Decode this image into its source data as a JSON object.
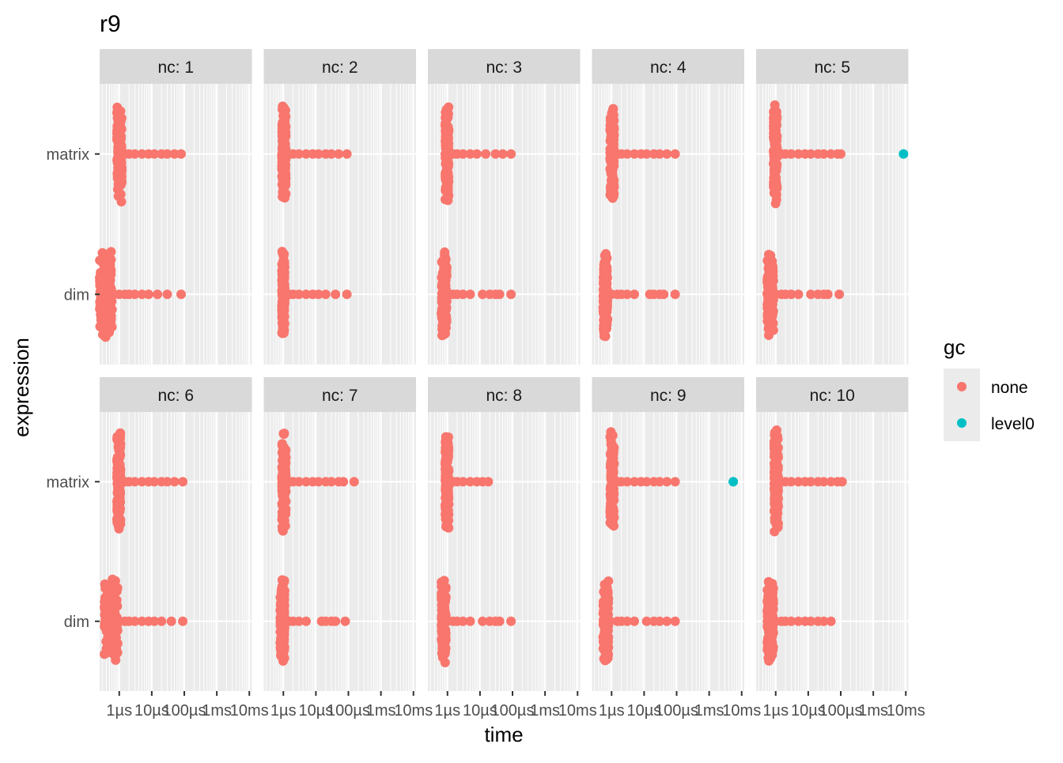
{
  "chart_data": {
    "type": "scatter",
    "title": "r9",
    "xlabel": "time",
    "ylabel": "expression",
    "x_scale": "log10",
    "x_ticks": [
      "1µs",
      "10µs",
      "100µs",
      "1ms",
      "10ms"
    ],
    "x_tick_values_seconds": [
      1e-06,
      1e-05,
      0.0001,
      0.001,
      0.01
    ],
    "y_categories": [
      "matrix",
      "dim"
    ],
    "legend": {
      "title": "gc",
      "position": "right",
      "entries": [
        {
          "label": "none",
          "color": "#F8766D"
        },
        {
          "label": "level0",
          "color": "#00BFC4"
        }
      ]
    },
    "panels": [
      {
        "label": "nc: 1",
        "matrix": {
          "core": [
            8.5e-07,
            1.2e-06
          ],
          "tail": [
            1.5e-06,
            2e-06,
            3e-06,
            5e-06,
            8e-06,
            1.2e-05,
            2e-05,
            3e-05,
            5e-05,
            8e-05
          ],
          "level0": []
        },
        "dim": {
          "core": [
            2.5e-07,
            6e-07
          ],
          "tail": [
            7e-07,
            1e-06,
            1.5e-06,
            2e-06,
            3e-06,
            5e-06,
            8e-06,
            1.5e-05,
            3e-05,
            8e-05
          ],
          "level0": []
        }
      },
      {
        "label": "nc: 2",
        "matrix": {
          "core": [
            9e-07,
            1.2e-06
          ],
          "tail": [
            1.5e-06,
            2e-06,
            3e-06,
            5e-06,
            8e-06,
            1.2e-05,
            2e-05,
            3e-05,
            5e-05,
            9e-05
          ],
          "level0": []
        },
        "dim": {
          "core": [
            9e-07,
            1.1e-06
          ],
          "tail": [
            1.2e-06,
            1.5e-06,
            2e-06,
            3e-06,
            5e-06,
            8e-06,
            1.2e-05,
            2e-05,
            4e-05,
            9e-05
          ],
          "level0": []
        }
      },
      {
        "label": "nc: 3",
        "matrix": {
          "core": [
            8.5e-07,
            1.1e-06
          ],
          "tail": [
            1.5e-06,
            2e-06,
            3e-06,
            5e-06,
            8e-06,
            1.5e-05,
            3e-05,
            5e-05,
            9e-05
          ],
          "level0": []
        },
        "dim": {
          "core": [
            6.5e-07,
            9.5e-07
          ],
          "tail": [
            1e-06,
            1.5e-06,
            2e-06,
            3e-06,
            5e-06,
            1.2e-05,
            2e-05,
            3e-05,
            4e-05,
            9e-05
          ],
          "level0": []
        }
      },
      {
        "label": "nc: 4",
        "matrix": {
          "core": [
            9e-07,
            1.2e-06
          ],
          "tail": [
            1.5e-06,
            2e-06,
            3e-06,
            5e-06,
            8e-06,
            1.2e-05,
            2e-05,
            3e-05,
            5e-05,
            9e-05
          ],
          "level0": []
        },
        "dim": {
          "core": [
            5.5e-07,
            7.5e-07
          ],
          "tail": [
            8e-07,
            1e-06,
            1.5e-06,
            2e-06,
            3e-06,
            5e-06,
            1.5e-05,
            2e-05,
            3e-05,
            4e-05,
            9e-05
          ],
          "level0": []
        }
      },
      {
        "label": "nc: 5",
        "matrix": {
          "core": [
            8.5e-07,
            1.1e-06
          ],
          "tail": [
            1.5e-06,
            2e-06,
            3e-06,
            5e-06,
            8e-06,
            1.2e-05,
            2e-05,
            3e-05,
            5e-05,
            8e-05,
            0.0001
          ],
          "level0": [
            0.0085
          ]
        },
        "dim": {
          "core": [
            5.5e-07,
            8.5e-07
          ],
          "tail": [
            1e-06,
            1.5e-06,
            2e-06,
            3e-06,
            5e-06,
            1.2e-05,
            2e-05,
            3e-05,
            4e-05,
            9e-05
          ],
          "level0": []
        }
      },
      {
        "label": "nc: 6",
        "matrix": {
          "core": [
            8.5e-07,
            1.1e-06
          ],
          "tail": [
            1.5e-06,
            2e-06,
            3e-06,
            5e-06,
            8e-06,
            1.2e-05,
            2e-05,
            3e-05,
            5e-05,
            9e-05
          ],
          "level0": []
        },
        "dim": {
          "core": [
            3.5e-07,
            9e-07
          ],
          "tail": [
            1e-06,
            1.5e-06,
            2e-06,
            3e-06,
            5e-06,
            8e-06,
            1.2e-05,
            2e-05,
            4e-05,
            9e-05
          ],
          "level0": []
        }
      },
      {
        "label": "nc: 7",
        "matrix": {
          "core": [
            9e-07,
            1.2e-06
          ],
          "tail": [
            1.5e-06,
            2e-06,
            3e-06,
            5e-06,
            8e-06,
            1.2e-05,
            2e-05,
            3e-05,
            5e-05,
            7e-05,
            0.00015
          ],
          "level0": []
        },
        "dim": {
          "core": [
            8e-07,
            1.1e-06
          ],
          "tail": [
            1.2e-06,
            1.5e-06,
            2e-06,
            3e-06,
            5e-06,
            1.5e-05,
            2e-05,
            3e-05,
            4e-05,
            8e-05
          ],
          "level0": []
        }
      },
      {
        "label": "nc: 8",
        "matrix": {
          "core": [
            8.5e-07,
            1.1e-06
          ],
          "tail": [
            1.5e-06,
            2e-06,
            3e-06,
            5e-06,
            8e-06,
            1.2e-05,
            1.8e-05
          ],
          "level0": []
        },
        "dim": {
          "core": [
            6.5e-07,
            9e-07
          ],
          "tail": [
            1e-06,
            1.5e-06,
            2e-06,
            3e-06,
            5e-06,
            1.2e-05,
            2e-05,
            3e-05,
            4e-05,
            9e-05
          ],
          "level0": []
        }
      },
      {
        "label": "nc: 9",
        "matrix": {
          "core": [
            9e-07,
            1.2e-06
          ],
          "tail": [
            1.5e-06,
            2e-06,
            3e-06,
            5e-06,
            8e-06,
            1.2e-05,
            2e-05,
            3e-05,
            5e-05,
            9e-05
          ],
          "level0": [
            0.0055
          ]
        },
        "dim": {
          "core": [
            5.5e-07,
            8e-07
          ],
          "tail": [
            9e-07,
            1.5e-06,
            2e-06,
            3e-06,
            5e-06,
            1.2e-05,
            2e-05,
            3e-05,
            5e-05,
            9e-05
          ],
          "level0": []
        }
      },
      {
        "label": "nc: 10",
        "matrix": {
          "core": [
            9e-07,
            1.2e-06
          ],
          "tail": [
            1.5e-06,
            2e-06,
            3e-06,
            5e-06,
            8e-06,
            1.2e-05,
            2e-05,
            3e-05,
            5e-05,
            8e-05,
            0.00011
          ],
          "level0": []
        },
        "dim": {
          "core": [
            5.5e-07,
            8.5e-07
          ],
          "tail": [
            1e-06,
            1.5e-06,
            2e-06,
            3e-06,
            5e-06,
            8e-06,
            1.2e-05,
            2e-05,
            3e-05,
            5e-05
          ],
          "level0": []
        }
      }
    ]
  }
}
